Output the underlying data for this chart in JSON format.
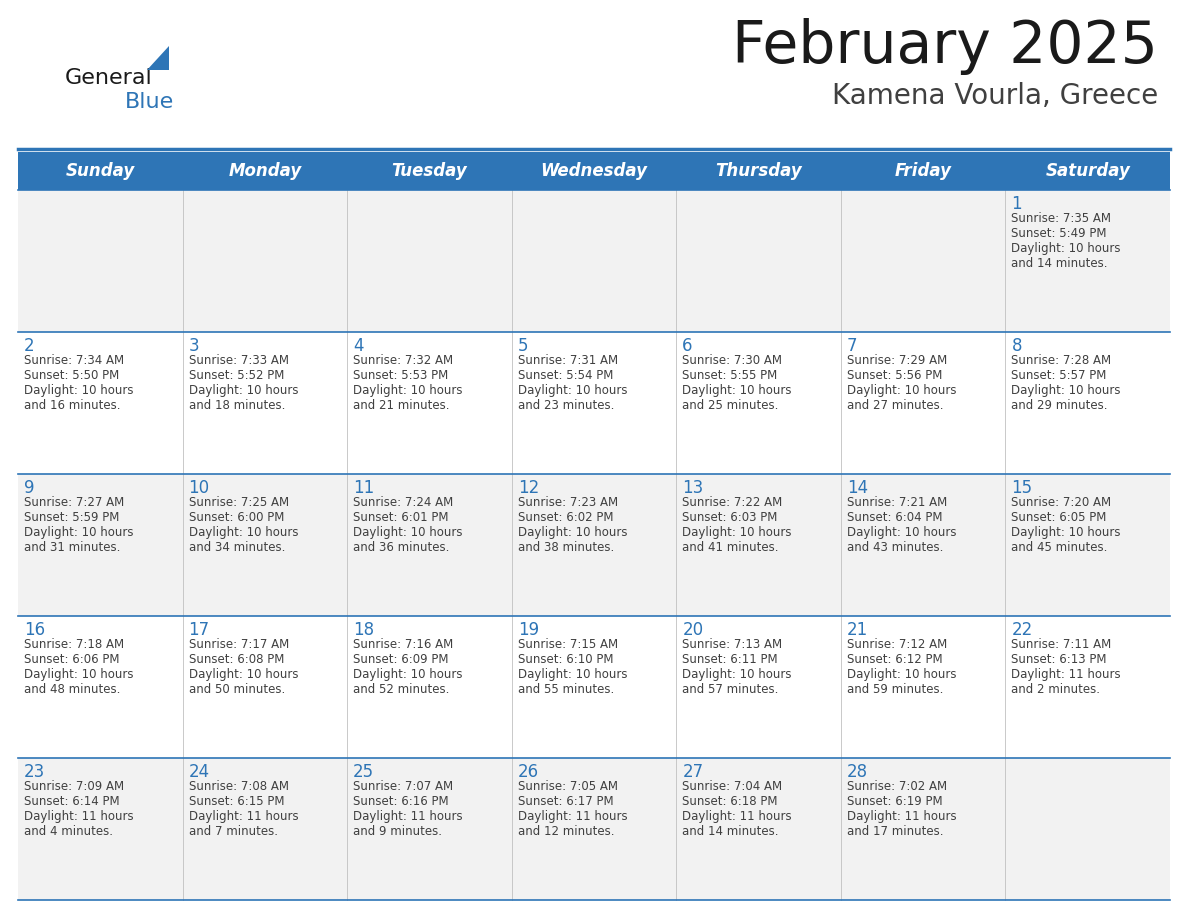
{
  "title": "February 2025",
  "subtitle": "Kamena Vourla, Greece",
  "header_color": "#2E75B6",
  "header_text_color": "#FFFFFF",
  "bg_color": "#FFFFFF",
  "cell_bg_alt": "#F2F2F2",
  "cell_bg_normal": "#FFFFFF",
  "day_number_color": "#2E75B6",
  "text_color": "#404040",
  "border_color": "#2E75B6",
  "days_of_week": [
    "Sunday",
    "Monday",
    "Tuesday",
    "Wednesday",
    "Thursday",
    "Friday",
    "Saturday"
  ],
  "weeks": [
    [
      {
        "date": "",
        "sunrise": "",
        "sunset": "",
        "daylight1": "",
        "daylight2": ""
      },
      {
        "date": "",
        "sunrise": "",
        "sunset": "",
        "daylight1": "",
        "daylight2": ""
      },
      {
        "date": "",
        "sunrise": "",
        "sunset": "",
        "daylight1": "",
        "daylight2": ""
      },
      {
        "date": "",
        "sunrise": "",
        "sunset": "",
        "daylight1": "",
        "daylight2": ""
      },
      {
        "date": "",
        "sunrise": "",
        "sunset": "",
        "daylight1": "",
        "daylight2": ""
      },
      {
        "date": "",
        "sunrise": "",
        "sunset": "",
        "daylight1": "",
        "daylight2": ""
      },
      {
        "date": "1",
        "sunrise": "Sunrise: 7:35 AM",
        "sunset": "Sunset: 5:49 PM",
        "daylight1": "Daylight: 10 hours",
        "daylight2": "and 14 minutes."
      }
    ],
    [
      {
        "date": "2",
        "sunrise": "Sunrise: 7:34 AM",
        "sunset": "Sunset: 5:50 PM",
        "daylight1": "Daylight: 10 hours",
        "daylight2": "and 16 minutes."
      },
      {
        "date": "3",
        "sunrise": "Sunrise: 7:33 AM",
        "sunset": "Sunset: 5:52 PM",
        "daylight1": "Daylight: 10 hours",
        "daylight2": "and 18 minutes."
      },
      {
        "date": "4",
        "sunrise": "Sunrise: 7:32 AM",
        "sunset": "Sunset: 5:53 PM",
        "daylight1": "Daylight: 10 hours",
        "daylight2": "and 21 minutes."
      },
      {
        "date": "5",
        "sunrise": "Sunrise: 7:31 AM",
        "sunset": "Sunset: 5:54 PM",
        "daylight1": "Daylight: 10 hours",
        "daylight2": "and 23 minutes."
      },
      {
        "date": "6",
        "sunrise": "Sunrise: 7:30 AM",
        "sunset": "Sunset: 5:55 PM",
        "daylight1": "Daylight: 10 hours",
        "daylight2": "and 25 minutes."
      },
      {
        "date": "7",
        "sunrise": "Sunrise: 7:29 AM",
        "sunset": "Sunset: 5:56 PM",
        "daylight1": "Daylight: 10 hours",
        "daylight2": "and 27 minutes."
      },
      {
        "date": "8",
        "sunrise": "Sunrise: 7:28 AM",
        "sunset": "Sunset: 5:57 PM",
        "daylight1": "Daylight: 10 hours",
        "daylight2": "and 29 minutes."
      }
    ],
    [
      {
        "date": "9",
        "sunrise": "Sunrise: 7:27 AM",
        "sunset": "Sunset: 5:59 PM",
        "daylight1": "Daylight: 10 hours",
        "daylight2": "and 31 minutes."
      },
      {
        "date": "10",
        "sunrise": "Sunrise: 7:25 AM",
        "sunset": "Sunset: 6:00 PM",
        "daylight1": "Daylight: 10 hours",
        "daylight2": "and 34 minutes."
      },
      {
        "date": "11",
        "sunrise": "Sunrise: 7:24 AM",
        "sunset": "Sunset: 6:01 PM",
        "daylight1": "Daylight: 10 hours",
        "daylight2": "and 36 minutes."
      },
      {
        "date": "12",
        "sunrise": "Sunrise: 7:23 AM",
        "sunset": "Sunset: 6:02 PM",
        "daylight1": "Daylight: 10 hours",
        "daylight2": "and 38 minutes."
      },
      {
        "date": "13",
        "sunrise": "Sunrise: 7:22 AM",
        "sunset": "Sunset: 6:03 PM",
        "daylight1": "Daylight: 10 hours",
        "daylight2": "and 41 minutes."
      },
      {
        "date": "14",
        "sunrise": "Sunrise: 7:21 AM",
        "sunset": "Sunset: 6:04 PM",
        "daylight1": "Daylight: 10 hours",
        "daylight2": "and 43 minutes."
      },
      {
        "date": "15",
        "sunrise": "Sunrise: 7:20 AM",
        "sunset": "Sunset: 6:05 PM",
        "daylight1": "Daylight: 10 hours",
        "daylight2": "and 45 minutes."
      }
    ],
    [
      {
        "date": "16",
        "sunrise": "Sunrise: 7:18 AM",
        "sunset": "Sunset: 6:06 PM",
        "daylight1": "Daylight: 10 hours",
        "daylight2": "and 48 minutes."
      },
      {
        "date": "17",
        "sunrise": "Sunrise: 7:17 AM",
        "sunset": "Sunset: 6:08 PM",
        "daylight1": "Daylight: 10 hours",
        "daylight2": "and 50 minutes."
      },
      {
        "date": "18",
        "sunrise": "Sunrise: 7:16 AM",
        "sunset": "Sunset: 6:09 PM",
        "daylight1": "Daylight: 10 hours",
        "daylight2": "and 52 minutes."
      },
      {
        "date": "19",
        "sunrise": "Sunrise: 7:15 AM",
        "sunset": "Sunset: 6:10 PM",
        "daylight1": "Daylight: 10 hours",
        "daylight2": "and 55 minutes."
      },
      {
        "date": "20",
        "sunrise": "Sunrise: 7:13 AM",
        "sunset": "Sunset: 6:11 PM",
        "daylight1": "Daylight: 10 hours",
        "daylight2": "and 57 minutes."
      },
      {
        "date": "21",
        "sunrise": "Sunrise: 7:12 AM",
        "sunset": "Sunset: 6:12 PM",
        "daylight1": "Daylight: 10 hours",
        "daylight2": "and 59 minutes."
      },
      {
        "date": "22",
        "sunrise": "Sunrise: 7:11 AM",
        "sunset": "Sunset: 6:13 PM",
        "daylight1": "Daylight: 11 hours",
        "daylight2": "and 2 minutes."
      }
    ],
    [
      {
        "date": "23",
        "sunrise": "Sunrise: 7:09 AM",
        "sunset": "Sunset: 6:14 PM",
        "daylight1": "Daylight: 11 hours",
        "daylight2": "and 4 minutes."
      },
      {
        "date": "24",
        "sunrise": "Sunrise: 7:08 AM",
        "sunset": "Sunset: 6:15 PM",
        "daylight1": "Daylight: 11 hours",
        "daylight2": "and 7 minutes."
      },
      {
        "date": "25",
        "sunrise": "Sunrise: 7:07 AM",
        "sunset": "Sunset: 6:16 PM",
        "daylight1": "Daylight: 11 hours",
        "daylight2": "and 9 minutes."
      },
      {
        "date": "26",
        "sunrise": "Sunrise: 7:05 AM",
        "sunset": "Sunset: 6:17 PM",
        "daylight1": "Daylight: 11 hours",
        "daylight2": "and 12 minutes."
      },
      {
        "date": "27",
        "sunrise": "Sunrise: 7:04 AM",
        "sunset": "Sunset: 6:18 PM",
        "daylight1": "Daylight: 11 hours",
        "daylight2": "and 14 minutes."
      },
      {
        "date": "28",
        "sunrise": "Sunrise: 7:02 AM",
        "sunset": "Sunset: 6:19 PM",
        "daylight1": "Daylight: 11 hours",
        "daylight2": "and 17 minutes."
      },
      {
        "date": "",
        "sunrise": "",
        "sunset": "",
        "daylight1": "",
        "daylight2": ""
      }
    ]
  ]
}
